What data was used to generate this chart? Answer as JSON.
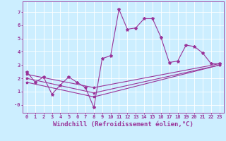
{
  "xlabel": "Windchill (Refroidissement éolien,°C)",
  "ylabel": "",
  "bg_color": "#cceeff",
  "line_color": "#993399",
  "grid_color": "#ffffff",
  "x_ticks": [
    0,
    1,
    2,
    3,
    4,
    5,
    6,
    7,
    8,
    9,
    10,
    11,
    12,
    13,
    14,
    15,
    16,
    17,
    18,
    19,
    20,
    21,
    22,
    23
  ],
  "y_ticks": [
    0,
    1,
    2,
    3,
    4,
    5,
    6,
    7
  ],
  "ylim": [
    -0.6,
    7.8
  ],
  "xlim": [
    -0.5,
    23.5
  ],
  "line1_x": [
    0,
    1,
    2,
    3,
    4,
    5,
    6,
    7,
    8,
    9,
    10,
    11,
    12,
    13,
    14,
    15,
    16,
    17,
    18,
    19,
    20,
    21,
    22,
    23
  ],
  "line1_y": [
    2.5,
    1.7,
    2.1,
    0.8,
    1.5,
    2.1,
    1.7,
    1.3,
    -0.2,
    3.5,
    3.7,
    7.2,
    5.7,
    5.8,
    6.5,
    6.5,
    5.1,
    3.2,
    3.3,
    4.5,
    4.4,
    3.9,
    3.1,
    3.1
  ],
  "line2_x": [
    0,
    8,
    23
  ],
  "line2_y": [
    2.3,
    1.3,
    3.1
  ],
  "line3_x": [
    0,
    8,
    23
  ],
  "line3_y": [
    2.0,
    0.9,
    3.0
  ],
  "line4_x": [
    0,
    8,
    23
  ],
  "line4_y": [
    1.7,
    0.6,
    3.0
  ],
  "marker": "*",
  "markersize": 3,
  "linewidth": 0.8,
  "tick_fontsize": 5,
  "label_fontsize": 6.5
}
